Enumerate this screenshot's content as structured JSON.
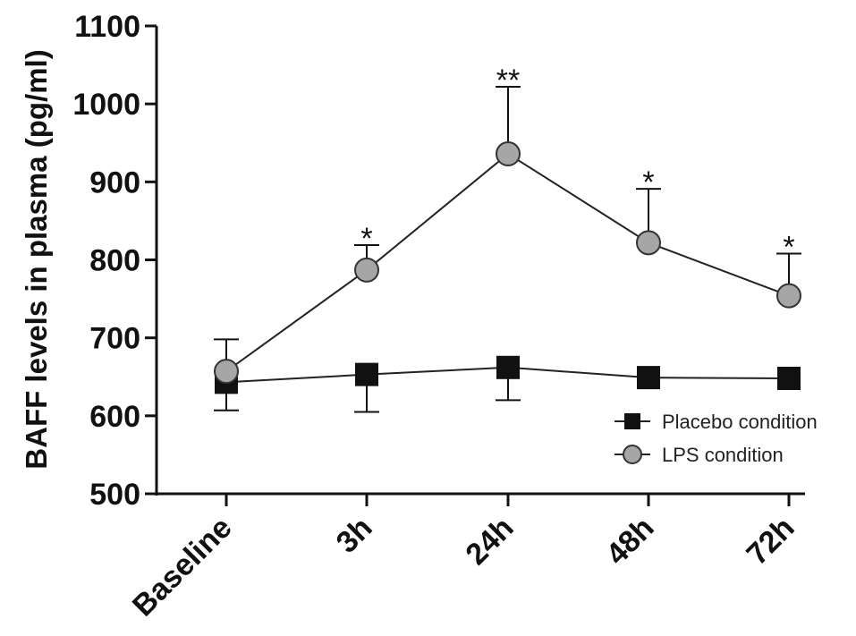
{
  "chart_data": {
    "type": "line",
    "ylabel": "BAFF levels in plasma (pg/ml)",
    "xlabel": "",
    "categories": [
      "Baseline",
      "3h",
      "24h",
      "48h",
      "72h"
    ],
    "ylim": [
      500,
      1100
    ],
    "yticks": [
      500,
      600,
      700,
      800,
      900,
      1000,
      1100
    ],
    "grid": false,
    "legend_position": "bottom-right",
    "series": [
      {
        "name": "Placebo condition",
        "marker": "square",
        "color": "#111111",
        "values": [
          643,
          653,
          662,
          649,
          648
        ],
        "error_lower": [
          607,
          605,
          620,
          649,
          648
        ],
        "error_upper": [
          643,
          653,
          662,
          649,
          648
        ]
      },
      {
        "name": "LPS condition",
        "marker": "circle",
        "color": "#a6a6a6",
        "values": [
          657,
          787,
          936,
          822,
          754
        ],
        "error_upper": [
          698,
          819,
          1022,
          891,
          808
        ],
        "significance": [
          "",
          "*",
          "**",
          "*",
          "*"
        ]
      }
    ]
  }
}
